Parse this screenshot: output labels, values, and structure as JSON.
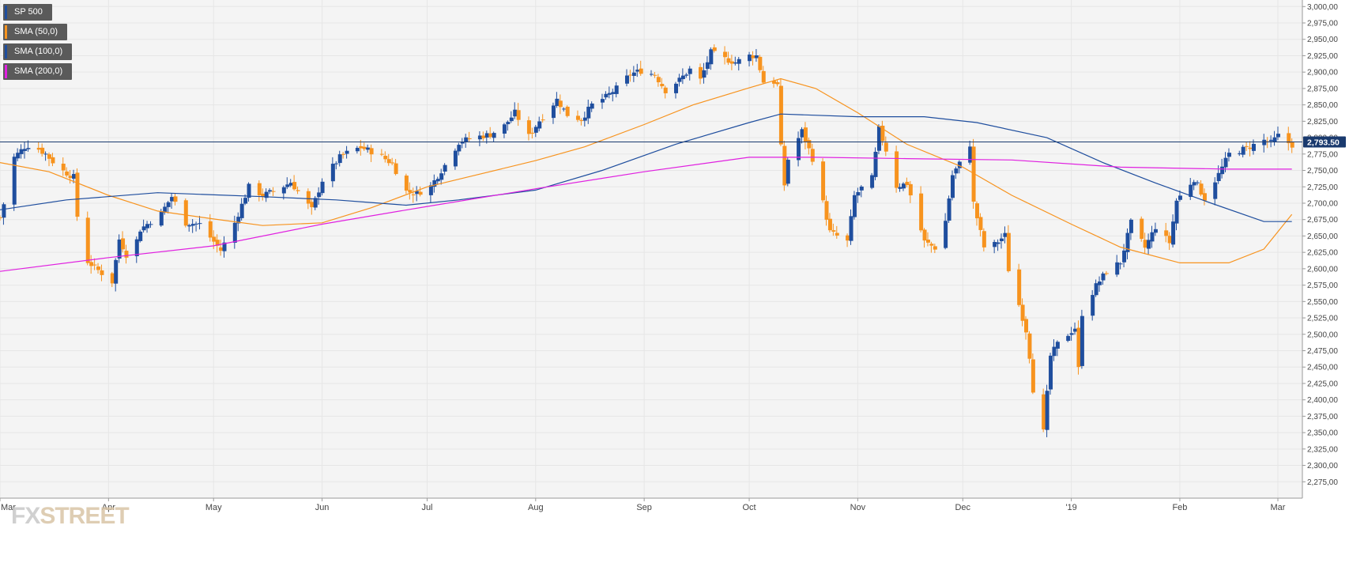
{
  "legend": [
    {
      "label": "SP 500",
      "color": "#1f4e9e"
    },
    {
      "label": "SMA (50,0)",
      "color": "#f7931e"
    },
    {
      "label": "SMA (100,0)",
      "color": "#1f4e9e"
    },
    {
      "label": "SMA (200,0)",
      "color": "#e020e0"
    }
  ],
  "watermark": {
    "prefix": "FX",
    "suffix": "STREET"
  },
  "colors": {
    "up": "#1f4e9e",
    "down": "#f7931e",
    "sma50": "#f7931e",
    "sma100": "#1f4e9e",
    "sma200": "#e020e0",
    "grid": "#e6e6e6",
    "plot_bg": "#f4f4f4",
    "price_line": "#1a3a6e",
    "price_badge": "#1a3a6e"
  },
  "chart_data": {
    "type": "candlestick",
    "series_name": "SP 500",
    "ylim": [
      2250,
      3010
    ],
    "y_ticks": [
      2275,
      2300,
      2325,
      2350,
      2375,
      2400,
      2425,
      2450,
      2475,
      2500,
      2525,
      2550,
      2575,
      2600,
      2625,
      2650,
      2675,
      2700,
      2725,
      2750,
      2775,
      2800,
      2825,
      2850,
      2875,
      2900,
      2925,
      2950,
      2975,
      3000
    ],
    "y_tick_labels": [
      "2,275,00",
      "2,300,00",
      "2,325,00",
      "2,350,00",
      "2,375,00",
      "2,400,00",
      "2,425,00",
      "2,450,00",
      "2,475,00",
      "2,500,00",
      "2,525,00",
      "2,550,00",
      "2,575,00",
      "2,600,00",
      "2,625,00",
      "2,650,00",
      "2,675,00",
      "2,700,00",
      "2,725,00",
      "2,750,00",
      "2,775,00",
      "2,800,00",
      "2,825,00",
      "2,850,00",
      "2,875,00",
      "2,900,00",
      "2,925,00",
      "2,950,00",
      "2,975,00",
      "3,000,00"
    ],
    "x_range": [
      "2018-03-01",
      "2019-03-08"
    ],
    "x_ticks": [
      {
        "date": "2018-03-01",
        "label": "Mar"
      },
      {
        "date": "2018-04-01",
        "label": "Apr"
      },
      {
        "date": "2018-05-01",
        "label": "May"
      },
      {
        "date": "2018-06-01",
        "label": "Jun"
      },
      {
        "date": "2018-07-01",
        "label": "Jul"
      },
      {
        "date": "2018-08-01",
        "label": "Aug"
      },
      {
        "date": "2018-09-01",
        "label": "Sep"
      },
      {
        "date": "2018-10-01",
        "label": "Oct"
      },
      {
        "date": "2018-11-01",
        "label": "Nov"
      },
      {
        "date": "2018-12-01",
        "label": "Dec"
      },
      {
        "date": "2019-01-01",
        "label": "'19"
      },
      {
        "date": "2019-02-01",
        "label": "Feb"
      },
      {
        "date": "2019-03-01",
        "label": "Mar"
      }
    ],
    "price_level": {
      "value": 2793.5,
      "label": "2,793.50"
    },
    "anchors": [
      [
        "2018-03-01",
        2678
      ],
      [
        "2018-03-03",
        2720
      ],
      [
        "2018-03-05",
        2770
      ],
      [
        "2018-03-08",
        2786
      ],
      [
        "2018-03-10",
        2790
      ],
      [
        "2018-03-14",
        2775
      ],
      [
        "2018-03-18",
        2752
      ],
      [
        "2018-03-22",
        2740
      ],
      [
        "2018-03-24",
        2620
      ],
      [
        "2018-03-28",
        2602
      ],
      [
        "2018-04-02",
        2580
      ],
      [
        "2018-04-04",
        2645
      ],
      [
        "2018-04-07",
        2610
      ],
      [
        "2018-04-10",
        2660
      ],
      [
        "2018-04-16",
        2685
      ],
      [
        "2018-04-19",
        2710
      ],
      [
        "2018-04-23",
        2670
      ],
      [
        "2018-04-27",
        2668
      ],
      [
        "2018-05-03",
        2628
      ],
      [
        "2018-05-07",
        2670
      ],
      [
        "2018-05-11",
        2725
      ],
      [
        "2018-05-15",
        2712
      ],
      [
        "2018-05-19",
        2720
      ],
      [
        "2018-05-23",
        2732
      ],
      [
        "2018-05-29",
        2690
      ],
      [
        "2018-06-01",
        2735
      ],
      [
        "2018-06-06",
        2770
      ],
      [
        "2018-06-09",
        2780
      ],
      [
        "2018-06-12",
        2785
      ],
      [
        "2018-06-17",
        2775
      ],
      [
        "2018-06-21",
        2760
      ],
      [
        "2018-06-25",
        2718
      ],
      [
        "2018-06-28",
        2715
      ],
      [
        "2018-07-02",
        2726
      ],
      [
        "2018-07-06",
        2758
      ],
      [
        "2018-07-10",
        2793
      ],
      [
        "2018-07-14",
        2800
      ],
      [
        "2018-07-19",
        2805
      ],
      [
        "2018-07-23",
        2818
      ],
      [
        "2018-07-26",
        2838
      ],
      [
        "2018-07-30",
        2802
      ],
      [
        "2018-08-02",
        2826
      ],
      [
        "2018-08-07",
        2858
      ],
      [
        "2018-08-10",
        2835
      ],
      [
        "2018-08-14",
        2828
      ],
      [
        "2018-08-17",
        2850
      ],
      [
        "2018-08-21",
        2862
      ],
      [
        "2018-08-24",
        2875
      ],
      [
        "2018-08-28",
        2897
      ],
      [
        "2018-08-31",
        2902
      ],
      [
        "2018-09-04",
        2896
      ],
      [
        "2018-09-07",
        2872
      ],
      [
        "2018-09-11",
        2888
      ],
      [
        "2018-09-14",
        2904
      ],
      [
        "2018-09-17",
        2888
      ],
      [
        "2018-09-20",
        2930
      ],
      [
        "2018-09-24",
        2920
      ],
      [
        "2018-09-27",
        2915
      ],
      [
        "2018-10-01",
        2925
      ],
      [
        "2018-10-03",
        2925
      ],
      [
        "2018-10-05",
        2885
      ],
      [
        "2018-10-08",
        2885
      ],
      [
        "2018-10-09",
        2880
      ],
      [
        "2018-10-10",
        2785
      ],
      [
        "2018-10-11",
        2728
      ],
      [
        "2018-10-12",
        2767
      ],
      [
        "2018-10-16",
        2810
      ],
      [
        "2018-10-19",
        2768
      ],
      [
        "2018-10-24",
        2656
      ],
      [
        "2018-10-29",
        2641
      ],
      [
        "2018-10-31",
        2711
      ],
      [
        "2018-11-02",
        2723
      ],
      [
        "2018-11-05",
        2738
      ],
      [
        "2018-11-07",
        2813
      ],
      [
        "2018-11-09",
        2781
      ],
      [
        "2018-11-12",
        2726
      ],
      [
        "2018-11-15",
        2730
      ],
      [
        "2018-11-20",
        2641
      ],
      [
        "2018-11-23",
        2632
      ],
      [
        "2018-11-26",
        2673
      ],
      [
        "2018-11-28",
        2743
      ],
      [
        "2018-11-30",
        2760
      ],
      [
        "2018-12-03",
        2790
      ],
      [
        "2018-12-04",
        2700
      ],
      [
        "2018-12-07",
        2633
      ],
      [
        "2018-12-10",
        2637
      ],
      [
        "2018-12-13",
        2651
      ],
      [
        "2018-12-14",
        2599
      ],
      [
        "2018-12-17",
        2545
      ],
      [
        "2018-12-19",
        2506
      ],
      [
        "2018-12-20",
        2467
      ],
      [
        "2018-12-21",
        2416
      ],
      [
        "2018-12-24",
        2351
      ],
      [
        "2018-12-26",
        2467
      ],
      [
        "2018-12-28",
        2485
      ],
      [
        "2019-01-02",
        2510
      ],
      [
        "2019-01-03",
        2447
      ],
      [
        "2019-01-04",
        2532
      ],
      [
        "2019-01-08",
        2574
      ],
      [
        "2019-01-11",
        2596
      ],
      [
        "2019-01-15",
        2610
      ],
      [
        "2019-01-18",
        2670
      ],
      [
        "2019-01-22",
        2632
      ],
      [
        "2019-01-25",
        2664
      ],
      [
        "2019-01-29",
        2640
      ],
      [
        "2019-01-31",
        2704
      ],
      [
        "2019-02-05",
        2737
      ],
      [
        "2019-02-08",
        2707
      ],
      [
        "2019-02-12",
        2744
      ],
      [
        "2019-02-15",
        2775
      ],
      [
        "2019-02-20",
        2784
      ],
      [
        "2019-02-25",
        2796
      ],
      [
        "2019-02-27",
        2792
      ],
      [
        "2019-03-01",
        2803
      ],
      [
        "2019-03-04",
        2792
      ],
      [
        "2019-03-05",
        2789
      ]
    ],
    "sma": [
      {
        "name": "SMA (50,0)",
        "points": [
          [
            "2018-03-01",
            2762
          ],
          [
            "2018-03-15",
            2748
          ],
          [
            "2018-04-01",
            2712
          ],
          [
            "2018-04-15",
            2688
          ],
          [
            "2018-05-01",
            2676
          ],
          [
            "2018-05-15",
            2666
          ],
          [
            "2018-06-01",
            2670
          ],
          [
            "2018-06-15",
            2693
          ],
          [
            "2018-07-01",
            2725
          ],
          [
            "2018-07-15",
            2743
          ],
          [
            "2018-08-01",
            2765
          ],
          [
            "2018-08-15",
            2786
          ],
          [
            "2018-09-01",
            2820
          ],
          [
            "2018-09-15",
            2850
          ],
          [
            "2018-10-01",
            2876
          ],
          [
            "2018-10-10",
            2890
          ],
          [
            "2018-10-20",
            2875
          ],
          [
            "2018-11-01",
            2838
          ],
          [
            "2018-11-15",
            2790
          ],
          [
            "2018-12-01",
            2755
          ],
          [
            "2018-12-15",
            2712
          ],
          [
            "2019-01-01",
            2668
          ],
          [
            "2019-01-15",
            2633
          ],
          [
            "2019-02-01",
            2609
          ],
          [
            "2019-02-15",
            2609
          ],
          [
            "2019-02-25",
            2630
          ],
          [
            "2019-03-05",
            2683
          ]
        ]
      },
      {
        "name": "SMA (100,0)",
        "points": [
          [
            "2018-03-01",
            2690
          ],
          [
            "2018-03-20",
            2705
          ],
          [
            "2018-04-15",
            2716
          ],
          [
            "2018-05-15",
            2710
          ],
          [
            "2018-06-05",
            2705
          ],
          [
            "2018-06-25",
            2697
          ],
          [
            "2018-07-10",
            2705
          ],
          [
            "2018-08-01",
            2720
          ],
          [
            "2018-08-20",
            2750
          ],
          [
            "2018-09-10",
            2790
          ],
          [
            "2018-10-01",
            2823
          ],
          [
            "2018-10-10",
            2836
          ],
          [
            "2018-11-01",
            2832
          ],
          [
            "2018-11-20",
            2832
          ],
          [
            "2018-12-05",
            2823
          ],
          [
            "2018-12-25",
            2800
          ],
          [
            "2019-01-10",
            2762
          ],
          [
            "2019-01-25",
            2731
          ],
          [
            "2019-02-10",
            2700
          ],
          [
            "2019-02-25",
            2672
          ],
          [
            "2019-03-05",
            2672
          ]
        ]
      },
      {
        "name": "SMA (200,0)",
        "points": [
          [
            "2018-03-01",
            2596
          ],
          [
            "2018-04-01",
            2617
          ],
          [
            "2018-05-01",
            2635
          ],
          [
            "2018-06-01",
            2668
          ],
          [
            "2018-07-01",
            2695
          ],
          [
            "2018-08-01",
            2722
          ],
          [
            "2018-09-01",
            2748
          ],
          [
            "2018-10-01",
            2770
          ],
          [
            "2018-10-20",
            2770
          ],
          [
            "2018-11-15",
            2768
          ],
          [
            "2018-12-15",
            2766
          ],
          [
            "2019-01-15",
            2755
          ],
          [
            "2019-02-15",
            2752
          ],
          [
            "2019-03-05",
            2752
          ]
        ]
      }
    ]
  }
}
